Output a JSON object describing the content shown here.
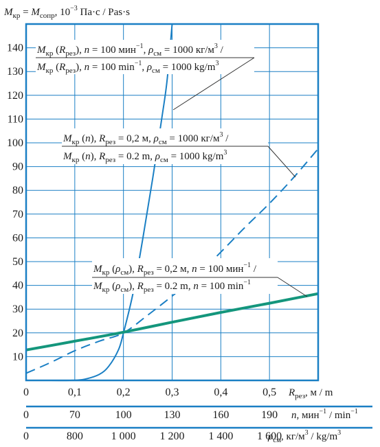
{
  "chart_data": {
    "type": "line",
    "ylabel": {
      "m1": "M",
      "s1": "кр",
      "eq": " = ",
      "m2": "M",
      "s2": "сопр",
      "unit_pre": ", 10",
      "unit_exp": "−3",
      "unit_post": " Па·с / Pas·s"
    },
    "ylim": [
      0,
      150
    ],
    "y_ticks": [
      10,
      20,
      30,
      40,
      50,
      60,
      70,
      80,
      90,
      100,
      110,
      120,
      130,
      140
    ],
    "x_axes": [
      {
        "name": "R",
        "ticks": [
          {
            "v": 0,
            "t": "0"
          },
          {
            "v": 0.1,
            "t": "0,1"
          },
          {
            "v": 0.2,
            "t": "0,2"
          },
          {
            "v": 0.3,
            "t": "0,3"
          },
          {
            "v": 0.4,
            "t": "0,4"
          },
          {
            "v": 0.5,
            "t": "0,5"
          }
        ],
        "label_main": "R",
        "label_sub": "рез",
        "label_unit": ", м / m",
        "range": [
          0,
          0.6
        ]
      },
      {
        "name": "n",
        "ticks": [
          {
            "v": 40,
            "t": "0"
          },
          {
            "v": 70,
            "t": "70"
          },
          {
            "v": 100,
            "t": "100"
          },
          {
            "v": 130,
            "t": "130"
          },
          {
            "v": 160,
            "t": "160"
          },
          {
            "v": 190,
            "t": "190"
          }
        ],
        "label_main": "n",
        "label_unit1": ", мин",
        "label_exp1": "−1",
        "label_unit2": " / min",
        "label_exp2": "−1",
        "range": [
          40,
          220
        ]
      },
      {
        "name": "rho",
        "ticks": [
          {
            "v": 600,
            "t": "0"
          },
          {
            "v": 800,
            "t": "800"
          },
          {
            "v": 1000,
            "t": "1 000"
          },
          {
            "v": 1200,
            "t": "1 200"
          },
          {
            "v": 1400,
            "t": "1 400"
          },
          {
            "v": 1600,
            "t": "1 600"
          }
        ],
        "label_main": "ρ",
        "label_sub": "см",
        "label_unit1": ", кг/м",
        "label_exp1": "3",
        "label_unit2": " / kg/m",
        "label_exp2": "3",
        "range": [
          600,
          1800
        ]
      }
    ],
    "series": [
      {
        "id": "MR",
        "style": "solid-thin",
        "color": "#1a7fc4",
        "x": [
          0.04,
          0.09,
          0.12,
          0.15,
          0.17,
          0.19,
          0.2,
          0.22,
          0.24,
          0.26,
          0.28,
          0.29,
          0.3
        ],
        "y": [
          0,
          0,
          0.5,
          2.5,
          6,
          13,
          20,
          37,
          60,
          85,
          112,
          127,
          150
        ]
      },
      {
        "id": "Mn",
        "style": "dashed",
        "color": "#1a7fc4",
        "x": [
          0,
          0.05,
          0.1,
          0.15,
          0.2,
          0.25,
          0.3,
          0.35,
          0.4,
          0.45,
          0.5,
          0.55,
          0.6
        ],
        "y": [
          3,
          7.5,
          12.5,
          16.5,
          20,
          27.5,
          35.5,
          44,
          54,
          64.5,
          74.5,
          85.5,
          97.5
        ]
      },
      {
        "id": "Mrho",
        "style": "solid-thick",
        "color": "#14967c",
        "x": [
          0,
          0.1,
          0.2,
          0.3,
          0.4,
          0.5,
          0.6
        ],
        "y": [
          12.8,
          16.5,
          20.3,
          24.5,
          28.6,
          32.5,
          36.5
        ]
      }
    ],
    "annotations": [
      {
        "l1": {
          "m": "M",
          "s": "кр",
          "a": " (",
          "v": "R",
          "vs": "рез",
          "b": "), ",
          "n": "n",
          "c": " = 100 мин",
          "e": "−1",
          "d": ", ",
          "r": "ρ",
          "rs": "см",
          "f": " = 1000 кг/м",
          "e2": "3",
          "g": " /"
        },
        "l2": {
          "m": "M",
          "s": "кр",
          "a": " (",
          "v": "R",
          "vs": "рез",
          "b": "), ",
          "n": "n",
          "c": " = 100 min",
          "e": "−1",
          "d": ", ",
          "r": "ρ",
          "rs": "см",
          "f": " = 1000 kg/m",
          "e2": "3",
          "g": ""
        }
      },
      {
        "l1": {
          "m": "M",
          "s": "кр",
          "a": " (",
          "v": "n",
          "vs": "",
          "b": "), ",
          "n": "R",
          "ns": "рез",
          "c": " = 0,2 м, ",
          "r": "ρ",
          "rs": "см",
          "f": " = 1000 кг/м",
          "e2": "3",
          "g": " /"
        },
        "l2": {
          "m": "M",
          "s": "кр",
          "a": " (",
          "v": "n",
          "vs": "",
          "b": "), ",
          "n": "R",
          "ns": "рез",
          "c": " = 0.2 m, ",
          "r": "ρ",
          "rs": "см",
          "f": " = 1000 kg/m",
          "e2": "3",
          "g": ""
        }
      },
      {
        "l1": {
          "m": "M",
          "s": "кр",
          "a": " (",
          "v": "ρ",
          "vs": "см",
          "b": "), ",
          "n": "R",
          "ns": "рез",
          "c": " = 0,2 м, ",
          "r": "n",
          "rs": "",
          "f": " = 100 мин",
          "e2": "−1",
          "g": " /"
        },
        "l2": {
          "m": "M",
          "s": "кр",
          "a": " (",
          "v": "ρ",
          "vs": "см",
          "b": "), ",
          "n": "R",
          "ns": "рез",
          "c": " = 0.2 m, ",
          "r": "n",
          "rs": "",
          "f": " = 100 min",
          "e2": "−1",
          "g": ""
        }
      }
    ]
  }
}
